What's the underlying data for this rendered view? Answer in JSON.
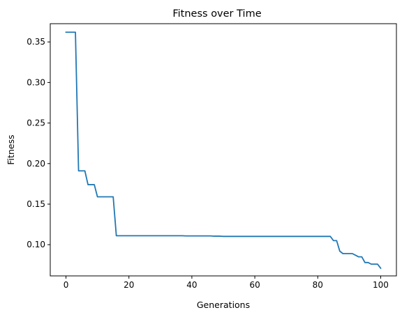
{
  "chart_data": {
    "type": "line",
    "title": "Fitness over Time",
    "xlabel": "Generations",
    "ylabel": "Fitness",
    "xlim": [
      -5,
      105
    ],
    "ylim": [
      0.0615,
      0.3725
    ],
    "xticks": [
      0,
      20,
      40,
      60,
      80,
      100
    ],
    "yticks": [
      0.1,
      0.15,
      0.2,
      0.25,
      0.3,
      0.35
    ],
    "xtick_labels": [
      "0",
      "20",
      "40",
      "60",
      "80",
      "100"
    ],
    "ytick_labels": [
      "0.10",
      "0.15",
      "0.20",
      "0.25",
      "0.30",
      "0.35"
    ],
    "grid": false,
    "series": [
      {
        "color": "#1f77b4",
        "x": [
          0,
          1,
          2,
          3,
          4,
          5,
          6,
          7,
          8,
          9,
          10,
          11,
          12,
          13,
          14,
          15,
          16,
          17,
          18,
          19,
          20,
          21,
          22,
          23,
          24,
          25,
          26,
          27,
          28,
          29,
          30,
          31,
          32,
          33,
          34,
          35,
          36,
          37,
          38,
          39,
          40,
          41,
          42,
          43,
          44,
          45,
          46,
          47,
          48,
          49,
          50,
          51,
          52,
          53,
          54,
          55,
          56,
          57,
          58,
          59,
          60,
          61,
          62,
          63,
          64,
          65,
          66,
          67,
          68,
          69,
          70,
          71,
          72,
          73,
          74,
          75,
          76,
          77,
          78,
          79,
          80,
          81,
          82,
          83,
          84,
          85,
          86,
          87,
          88,
          89,
          90,
          91,
          92,
          93,
          94,
          95,
          96,
          97,
          98,
          99,
          100
        ],
        "y": [
          0.362,
          0.362,
          0.362,
          0.362,
          0.191,
          0.191,
          0.191,
          0.174,
          0.174,
          0.174,
          0.159,
          0.159,
          0.159,
          0.159,
          0.159,
          0.159,
          0.111,
          0.111,
          0.111,
          0.111,
          0.111,
          0.111,
          0.111,
          0.111,
          0.111,
          0.111,
          0.111,
          0.111,
          0.111,
          0.111,
          0.111,
          0.111,
          0.111,
          0.111,
          0.111,
          0.111,
          0.111,
          0.111,
          0.1108,
          0.1108,
          0.1108,
          0.1108,
          0.1108,
          0.1108,
          0.1108,
          0.1108,
          0.1108,
          0.1105,
          0.1105,
          0.1105,
          0.1102,
          0.1102,
          0.1102,
          0.1102,
          0.1102,
          0.1102,
          0.1102,
          0.1102,
          0.1102,
          0.1102,
          0.1102,
          0.1102,
          0.1102,
          0.1102,
          0.1102,
          0.1102,
          0.1102,
          0.1102,
          0.1102,
          0.1102,
          0.1102,
          0.1102,
          0.1102,
          0.1102,
          0.1102,
          0.1102,
          0.1102,
          0.1102,
          0.1102,
          0.1102,
          0.1102,
          0.1102,
          0.1102,
          0.1102,
          0.1102,
          0.105,
          0.105,
          0.092,
          0.089,
          0.089,
          0.089,
          0.089,
          0.087,
          0.085,
          0.085,
          0.078,
          0.078,
          0.076,
          0.076,
          0.076,
          0.071
        ]
      }
    ]
  }
}
